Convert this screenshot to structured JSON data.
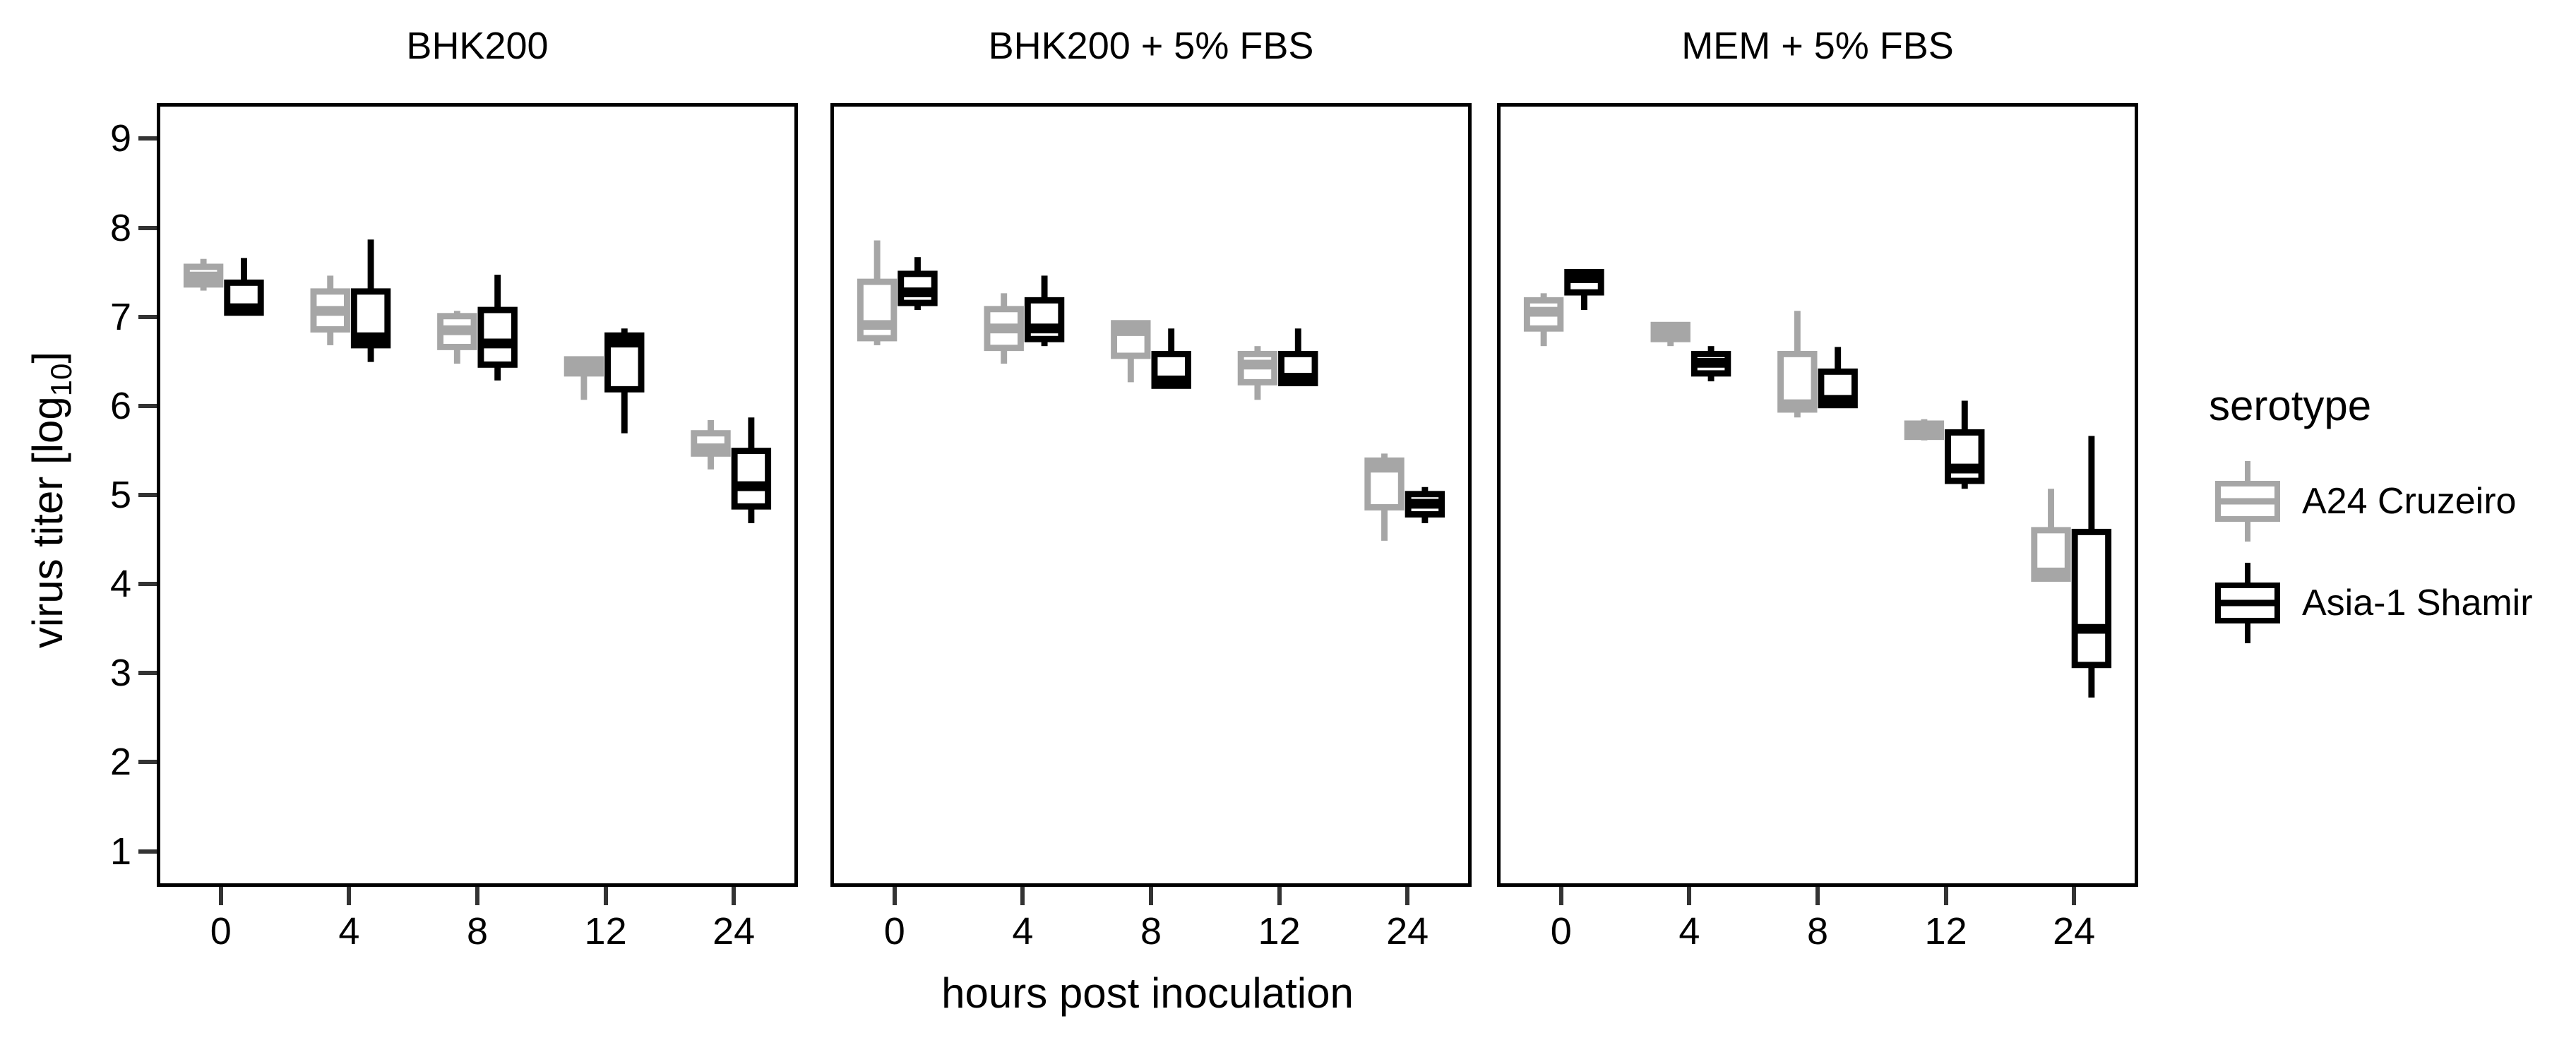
{
  "y_axis": {
    "title_prefix": "virus titer [log",
    "title_sub": "10",
    "title_suffix": "]",
    "ticks": [
      9,
      8,
      7,
      6,
      5,
      4,
      3,
      2,
      1
    ]
  },
  "x_axis": {
    "title": "hours post inoculation",
    "categories": [
      "0",
      "4",
      "8",
      "12",
      "24"
    ]
  },
  "legend": {
    "title": "serotype",
    "entries": [
      {
        "label": "A24 Cruzeiro",
        "color": "#a6a6a6"
      },
      {
        "label": "Asia-1 Shamir",
        "color": "#000000"
      }
    ]
  },
  "chart_data": {
    "type": "boxplot",
    "title": "",
    "xlabel": "hours post inoculation",
    "ylabel": "virus titer [log10]",
    "ylim": [
      0.6,
      9.4
    ],
    "yticks": [
      1,
      2,
      3,
      4,
      5,
      6,
      7,
      8,
      9
    ],
    "grid": false,
    "legend_position": "right",
    "box_stats_order": [
      "whisker_low",
      "q1",
      "median",
      "q3",
      "whisker_high"
    ],
    "categories": [
      "0",
      "4",
      "8",
      "12",
      "24"
    ],
    "facets": [
      {
        "title": "BHK200",
        "series": [
          {
            "name": "A24 Cruzeiro",
            "color": "#a6a6a6",
            "boxes": [
              [
                7.32,
                7.39,
                7.48,
                7.59,
                7.68
              ],
              [
                6.7,
                6.88,
                7.09,
                7.31,
                7.49
              ],
              [
                6.49,
                6.68,
                6.87,
                7.03,
                7.09
              ],
              [
                6.08,
                6.38,
                6.47,
                6.54,
                6.56
              ],
              [
                5.29,
                5.47,
                5.53,
                5.7,
                5.85
              ]
            ]
          },
          {
            "name": "Asia-1 Shamir",
            "color": "#000000",
            "boxes": [
              [
                7.05,
                7.07,
                7.12,
                7.41,
                7.69
              ],
              [
                6.51,
                6.7,
                6.79,
                7.31,
                7.9
              ],
              [
                6.3,
                6.48,
                6.72,
                7.1,
                7.5
              ],
              [
                5.7,
                6.2,
                6.73,
                6.81,
                6.89
              ],
              [
                4.68,
                4.87,
                5.1,
                5.5,
                5.88
              ]
            ]
          }
        ]
      },
      {
        "title": "BHK200 + 5% FBS",
        "series": [
          {
            "name": "A24 Cruzeiro",
            "color": "#a6a6a6",
            "boxes": [
              [
                6.7,
                6.78,
                6.93,
                7.42,
                7.89
              ],
              [
                6.49,
                6.67,
                6.89,
                7.11,
                7.29
              ],
              [
                6.28,
                6.58,
                6.86,
                6.95,
                6.95
              ],
              [
                6.08,
                6.28,
                6.48,
                6.6,
                6.69
              ],
              [
                4.48,
                4.86,
                5.31,
                5.39,
                5.47
              ]
            ]
          },
          {
            "name": "Asia-1 Shamir",
            "color": "#000000",
            "boxes": [
              [
                7.1,
                7.18,
                7.3,
                7.51,
                7.7
              ],
              [
                6.69,
                6.77,
                6.89,
                7.21,
                7.49
              ],
              [
                6.24,
                6.24,
                6.3,
                6.6,
                6.89
              ],
              [
                6.27,
                6.27,
                6.33,
                6.6,
                6.89
              ],
              [
                4.68,
                4.78,
                4.9,
                5.01,
                5.09
              ]
            ]
          }
        ]
      },
      {
        "title": "MEM + 5% FBS",
        "series": [
          {
            "name": "A24 Cruzeiro",
            "color": "#a6a6a6",
            "boxes": [
              [
                6.69,
                6.89,
                7.08,
                7.21,
                7.29
              ],
              [
                6.69,
                6.77,
                6.84,
                6.93,
                6.93
              ],
              [
                5.88,
                5.97,
                6.03,
                6.6,
                7.09
              ],
              [
                5.62,
                5.66,
                5.73,
                5.81,
                5.86
              ],
              [
                4.05,
                4.05,
                4.12,
                4.6,
                5.07
              ]
            ]
          },
          {
            "name": "Asia-1 Shamir",
            "color": "#000000",
            "boxes": [
              [
                7.1,
                7.3,
                7.46,
                7.53,
                7.53
              ],
              [
                6.29,
                6.38,
                6.5,
                6.6,
                6.69
              ],
              [
                6.02,
                6.02,
                6.08,
                6.4,
                6.68
              ],
              [
                5.07,
                5.16,
                5.3,
                5.71,
                6.07
              ],
              [
                2.7,
                3.07,
                3.48,
                4.58,
                5.67
              ]
            ]
          }
        ]
      }
    ]
  }
}
